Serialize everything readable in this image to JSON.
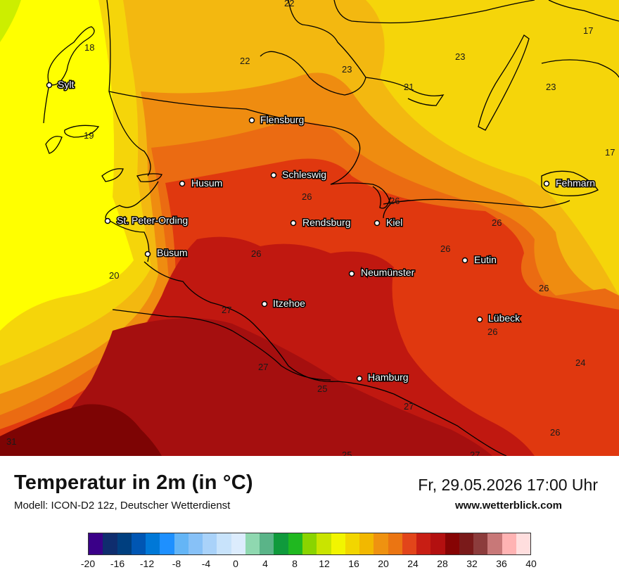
{
  "map": {
    "cities": [
      {
        "name": "Sylt"
      },
      {
        "name": "Flensburg"
      },
      {
        "name": "Schleswig"
      },
      {
        "name": "Husum"
      },
      {
        "name": "St. Peter-Ording"
      },
      {
        "name": "Rendsburg"
      },
      {
        "name": "Kiel"
      },
      {
        "name": "Fehmarn"
      },
      {
        "name": "Büsum"
      },
      {
        "name": "Neumünster"
      },
      {
        "name": "Eutin"
      },
      {
        "name": "Itzehoe"
      },
      {
        "name": "Lübeck"
      },
      {
        "name": "Hamburg"
      }
    ],
    "isotherm_labels": [
      "22",
      "18",
      "22",
      "23",
      "23",
      "21",
      "23",
      "17",
      "17",
      "19",
      "26",
      "26",
      "26",
      "26",
      "26",
      "26",
      "20",
      "27",
      "27",
      "26",
      "24",
      "25",
      "27",
      "26",
      "31",
      "25",
      "27"
    ],
    "colors": {
      "yellow_green": "#ccee00",
      "yellow": "#ffff00",
      "gold": "#f5d50a",
      "light_orange": "#f3b810",
      "orange": "#ef8c10",
      "dark_orange": "#eb6b12",
      "red_orange": "#e0380f",
      "red": "#c01810",
      "dark_red": "#a50f0f",
      "maroon": "#7d0404"
    }
  },
  "footer": {
    "title": "Temperatur in 2m (in °C)",
    "model": "Modell: ICON-D2 12z, Deutscher Wetterdienst",
    "datetime": "Fr, 29.05.2026 17:00 Uhr",
    "website": "www.wetterblick.com"
  },
  "legend": {
    "colors": [
      "#3a0088",
      "#0f2d6e",
      "#003f7f",
      "#0056b3",
      "#0078d7",
      "#1e90ff",
      "#64b5f6",
      "#87c1f7",
      "#a9d2f9",
      "#c8e3fb",
      "#dcecfd",
      "#8fd8b0",
      "#5ab488",
      "#0f9a3c",
      "#20b820",
      "#8ad400",
      "#c9e400",
      "#f2f500",
      "#f2d600",
      "#f2b800",
      "#ef9210",
      "#eb7512",
      "#e2451a",
      "#c81e14",
      "#b31010",
      "#860404",
      "#7a1a1a",
      "#8c3c3c",
      "#c87878",
      "#ffb3b3",
      "#ffdede"
    ],
    "ticks": [
      "-20",
      "-16",
      "-12",
      "-8",
      "-4",
      "0",
      "4",
      "8",
      "12",
      "16",
      "20",
      "24",
      "28",
      "32",
      "36",
      "40"
    ]
  }
}
